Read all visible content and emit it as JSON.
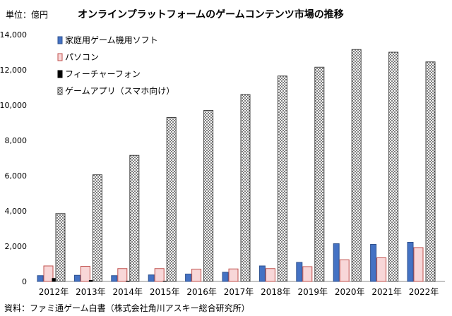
{
  "chart_data": {
    "type": "bar",
    "title": "オンラインプラットフォームのゲームコンテンツ市場の推移",
    "unit_label": "単位：億円",
    "source": "資料：ファミ通ゲーム白書（株式会社角川アスキー総合研究所）",
    "categories": [
      "2012年",
      "2013年",
      "2014年",
      "2015年",
      "2016年",
      "2017年",
      "2018年",
      "2019年",
      "2020年",
      "2021年",
      "2022年"
    ],
    "ylim": [
      0,
      14000
    ],
    "yticks": [
      0,
      2000,
      4000,
      6000,
      8000,
      10000,
      12000,
      14000
    ],
    "ytick_labels": [
      "0",
      "2,000",
      "4,000",
      "6,000",
      "8,000",
      "10,000",
      "12,000",
      "14,000"
    ],
    "legend_position": "top-left",
    "series": [
      {
        "name": "家庭用ゲーム機用ソフト",
        "key": "console",
        "color": "#4472c4",
        "values": [
          330,
          350,
          330,
          370,
          420,
          520,
          880,
          1080,
          2140,
          2100,
          2220
        ]
      },
      {
        "name": "パソコン",
        "key": "pc",
        "color": "#f8d7d8",
        "values": [
          880,
          860,
          730,
          730,
          700,
          710,
          730,
          840,
          1230,
          1340,
          1920
        ]
      },
      {
        "name": "フィーチャーフォン",
        "key": "feature_phone",
        "color": "#000000",
        "values": [
          170,
          60,
          20,
          10,
          0,
          0,
          0,
          0,
          0,
          0,
          0
        ]
      },
      {
        "name": "ゲームアプリ（スマホ向け）",
        "key": "smartphone_app",
        "color": "#d9d9d9",
        "values": [
          3850,
          6050,
          7150,
          9300,
          9700,
          10600,
          11650,
          12150,
          13150,
          13000,
          12450
        ]
      }
    ]
  }
}
